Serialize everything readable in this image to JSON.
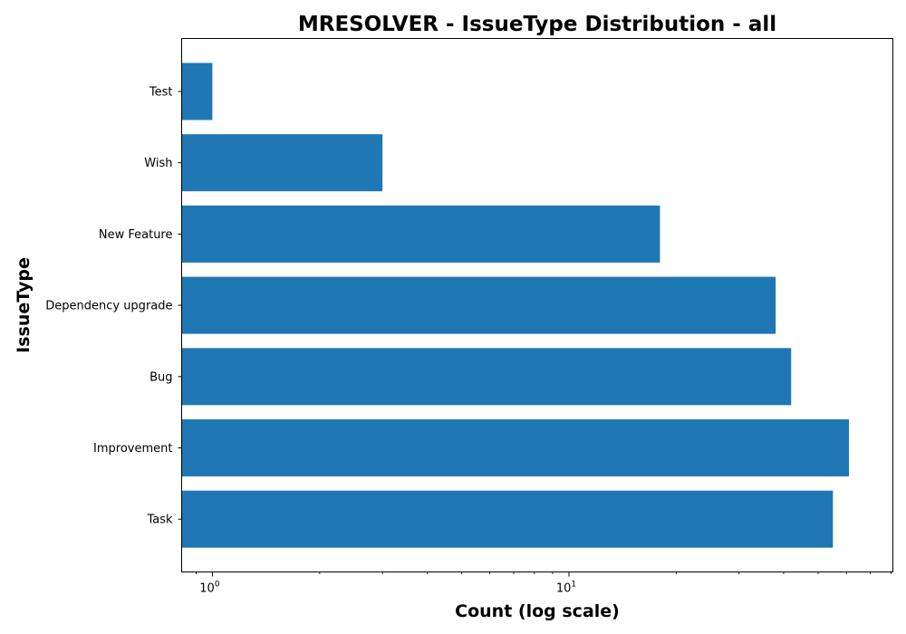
{
  "chart_data": {
    "type": "bar",
    "orientation": "horizontal",
    "title": "MRESOLVER - IssueType Distribution - all",
    "xlabel": "Count (log scale)",
    "ylabel": "IssueType",
    "xscale": "log",
    "xlim": [
      0.82,
      81
    ],
    "x_ticks": [
      {
        "value": 1,
        "base": "10",
        "exponent": "0"
      },
      {
        "value": 10,
        "base": "10",
        "exponent": "1"
      }
    ],
    "categories": [
      "Test",
      "Wish",
      "New Feature",
      "Dependency upgrade",
      "Bug",
      "Improvement",
      "Task"
    ],
    "values": [
      1,
      3,
      18,
      38,
      42,
      61,
      55
    ],
    "bar_color": "#1f77b4",
    "grid": false,
    "legend": "none"
  }
}
